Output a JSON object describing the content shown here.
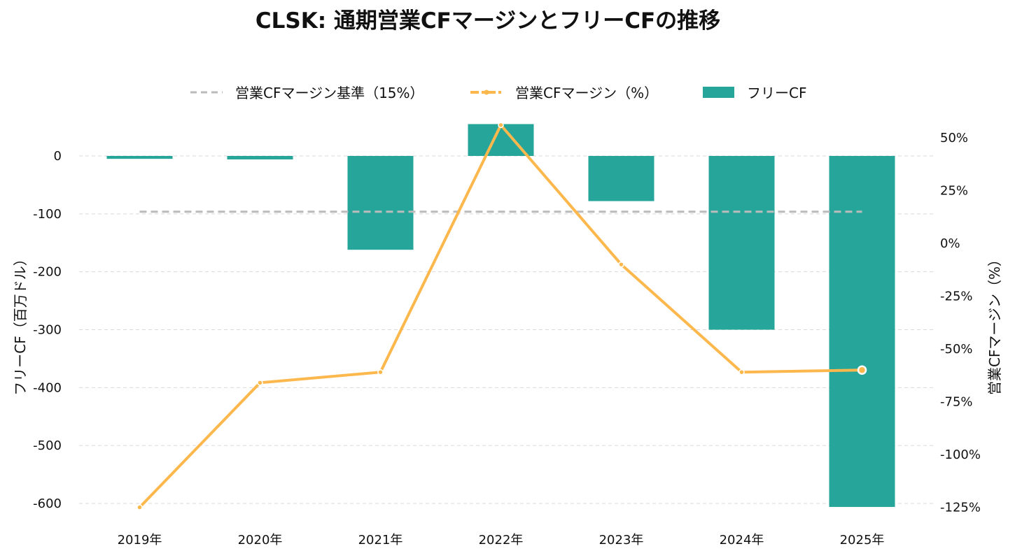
{
  "chart_data": {
    "type": "bar+line",
    "title": "CLSK: 通期営業CFマージンとフリーCFの推移",
    "categories": [
      "2019年",
      "2020年",
      "2021年",
      "2022年",
      "2023年",
      "2024年",
      "2025年"
    ],
    "bar_series": {
      "name": "フリーCF",
      "color": "#26a69a",
      "values": [
        -5,
        -6,
        -162,
        55,
        -78,
        -300,
        -606
      ]
    },
    "line_series": {
      "name": "営業CFマージン（%）",
      "color": "#fdb84d",
      "values": [
        -125,
        -66,
        -61,
        56,
        -10,
        -61,
        -60
      ]
    },
    "reference_line": {
      "name": "営業CFマージン基準（15%）",
      "color": "#bbbbbb",
      "value": 15
    },
    "y_left": {
      "label": "フリーCF（百万ドル）",
      "range": [
        -630,
        55
      ],
      "ticks": [
        0,
        -100,
        -200,
        -300,
        -400,
        -500,
        -600
      ],
      "tick_labels": [
        "0",
        "-100",
        "-200",
        "-300",
        "-400",
        "-500",
        "-600"
      ]
    },
    "y_right": {
      "label": "営業CFマージン（%）",
      "range": [
        -127,
        58
      ],
      "ticks": [
        50,
        25,
        0,
        -25,
        -50,
        -75,
        -100,
        -125
      ],
      "tick_labels": [
        "50%",
        "25%",
        "0%",
        "-25%",
        "-50%",
        "-75%",
        "-100%",
        "-125%"
      ]
    },
    "grid": true,
    "legend_position": "top-center"
  }
}
